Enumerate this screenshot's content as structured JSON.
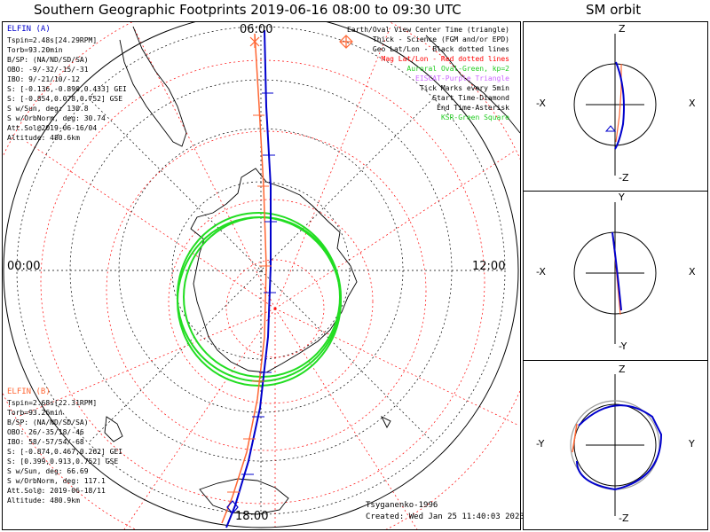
{
  "title": "Southern Geographic Footprints 2019-06-16 08:00 to 09:30 UTC",
  "orbit_title": "SM orbit",
  "clock_labels": {
    "top": "06:00",
    "left": "00:00",
    "right": "12:00",
    "bottom": "18:00"
  },
  "elfin_a": {
    "name": "ELFIN (A)",
    "lines": [
      "Tspin=2.48s[24.29RPM]",
      "Torb=93.20min",
      "B/SP: (NA/ND/SD/SA)",
      "OBO: -9/-32/-15/-31",
      "IBO: 9/-21/10/-12",
      "S: [-0.136,-0.890,0.433] GEI",
      "S: [-0.854,0.078,0.752] GSE",
      "S w/Sun, deg: 130.8",
      "S w/OrbNorm, deg: 30.74",
      "Att.Sol@2019-06-16/04",
      "Altitude: 480.6km"
    ]
  },
  "elfin_b": {
    "name": "ELFIN (B)",
    "lines": [
      "Tspin=2.68s[22.31RPM]",
      "Torb=93.26min",
      "B/SP: (NA/ND/SD/SA)",
      "OBO: 26/-35/18/-46",
      "IBO: 58/-57/54/-68",
      "S: [-0.874,0.467,0.262] GEI",
      "S: [0.399,0.913,0.752] GSE",
      "S w/Sun, deg: 66.69",
      "S w/OrbNorm, deg: 117.1",
      "Att.Sol@: 2019-06-18/11",
      "Altitude: 480.9km"
    ]
  },
  "legend": [
    {
      "text": "Earth/Oval View Center Time (triangle)",
      "color": "#000000"
    },
    {
      "text": "Thick - Science (FGM and/or EPD)",
      "color": "#000000"
    },
    {
      "text": "Geo Lat/Lon - Black dotted lines",
      "color": "#000000"
    },
    {
      "text": "Mag Lat/Lon - Red dotted lines",
      "color": "#ff0000"
    },
    {
      "text": "Auroral Oval-Green, kp=2",
      "color": "#22cc22"
    },
    {
      "text": "EISCAT-Purple Triangle",
      "color": "#cc66ff"
    },
    {
      "text": "Tick Marks every 5min",
      "color": "#000000"
    },
    {
      "text": "Start Time-Diamond",
      "color": "#000000"
    },
    {
      "text": "End Time-Asterisk",
      "color": "#000000"
    },
    {
      "text": "KSR-Green Square",
      "color": "#22cc22"
    }
  ],
  "footer": {
    "model": "Tsyganenko-1996",
    "created": "Created: Wed Jan 25 11:40:03 2023"
  },
  "orbit_panels": [
    {
      "top": "Z",
      "bottom": "-Z",
      "left": "-X",
      "right": "X"
    },
    {
      "top": "Y",
      "bottom": "-Y",
      "left": "-X",
      "right": "X"
    },
    {
      "top": "Z",
      "bottom": "-Z",
      "left": "-Y",
      "right": "Y"
    }
  ],
  "colors": {
    "elfin_a": "#0000cc",
    "elfin_b": "#ff6633",
    "oval": "#22dd22",
    "mag_grid": "#ff0000",
    "geo_grid": "#000000"
  },
  "chart_data": {
    "type": "scatter",
    "projection": "south polar stereographic",
    "series": [
      {
        "name": "ELFIN (A)",
        "color": "#0000cc"
      },
      {
        "name": "ELFIN (B)",
        "color": "#ff6633"
      }
    ]
  }
}
